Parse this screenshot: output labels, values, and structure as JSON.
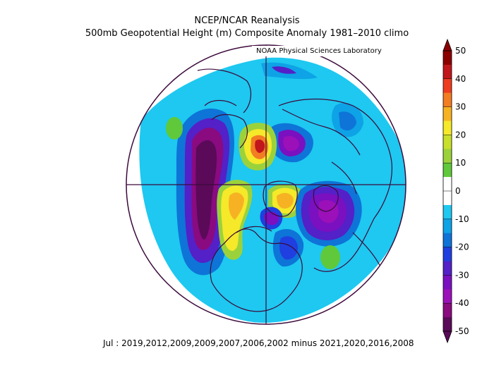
{
  "title_line1": "NCEP/NCAR Reanalysis",
  "title_line2": "500mb Geopotential Height (m) Composite Anomaly 1981–2010 climo",
  "credit": "NOAA Physical Sciences Laboratory",
  "caption": "Jul : 2019,2012,2009,2009,2007,2006,2002  minus  2021,2020,2016,2008",
  "colorbar": {
    "labels": [
      "50",
      "40",
      "30",
      "20",
      "10",
      "0",
      "-10",
      "-20",
      "-30",
      "-40",
      "-50"
    ],
    "colors": [
      "#8b0000",
      "#c1161b",
      "#ee3c1f",
      "#f27d22",
      "#f7b224",
      "#f5e92a",
      "#c8df2b",
      "#9bd23b",
      "#5fc93b",
      "#ffffff",
      "#ffffff",
      "#1ec8f0",
      "#0ea2e6",
      "#0e74d8",
      "#1f3fe0",
      "#5420c8",
      "#7a10c0",
      "#9b10b8",
      "#8a0a80",
      "#5a0a58"
    ]
  },
  "map": {
    "projection": "north-polar-stereographic",
    "field": "500mb geopotential height anomaly (m)",
    "features": [
      {
        "name": "positive anomaly, central Arctic/Laptev region",
        "value_approx": 35
      },
      {
        "name": "positive anomaly, Greenland",
        "value_approx": 25
      },
      {
        "name": "positive anomaly, Beaufort/Alaska",
        "value_approx": 25
      },
      {
        "name": "negative anomaly, North Pacific/Bering",
        "value_approx": -45
      },
      {
        "name": "negative anomaly, Siberia",
        "value_approx": -35
      },
      {
        "name": "negative anomaly, Scandinavia/N Europe",
        "value_approx": -35
      },
      {
        "name": "negative anomaly, NE Canada",
        "value_approx": -20
      }
    ]
  }
}
